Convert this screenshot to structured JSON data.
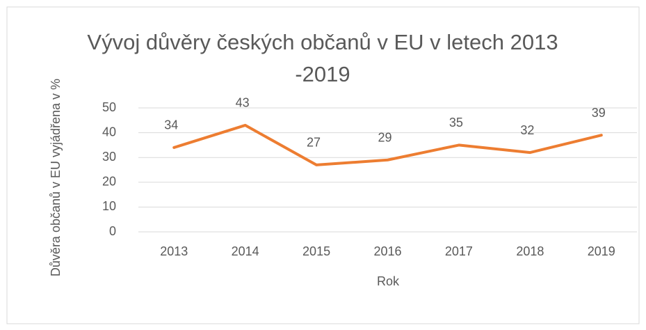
{
  "chart_data": {
    "type": "line",
    "title": "Vývoj důvěry českých občanů v EU v letech 2013 -2019",
    "x_label": "Rok",
    "y_label": "Důvěra občanů v EU vyjádřena v %",
    "categories": [
      "2013",
      "2014",
      "2015",
      "2016",
      "2017",
      "2018",
      "2019"
    ],
    "values": [
      34,
      43,
      27,
      29,
      35,
      32,
      39
    ],
    "color": "#ed7d31",
    "ylim": [
      0,
      50
    ],
    "yticks": [
      0,
      10,
      20,
      30,
      40,
      50
    ],
    "grid": true,
    "data_labels": true
  }
}
